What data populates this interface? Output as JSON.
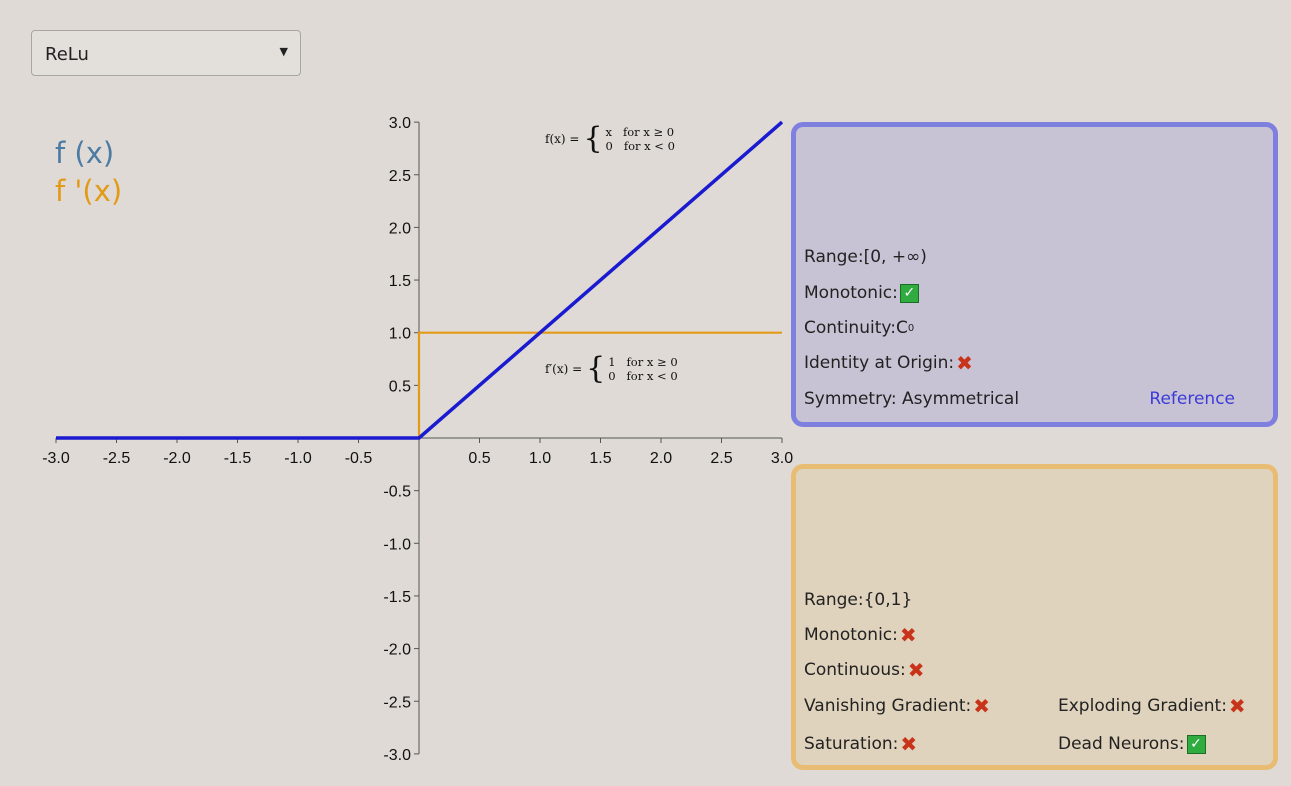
{
  "dropdown": {
    "selected": "ReLu"
  },
  "legend": {
    "f": "f (x)",
    "fprime": "f '(x)"
  },
  "formulas": {
    "f": {
      "lhs": "f(x) =",
      "case1": "x   for x ≥ 0",
      "case2": "0   for x < 0"
    },
    "fprime": {
      "lhs": "f′(x) =",
      "case1": "1   for x ≥ 0",
      "case2": "0   for x < 0"
    }
  },
  "chart_data": {
    "type": "line",
    "xlim": [
      -3,
      3
    ],
    "ylim": [
      -3,
      3
    ],
    "xticks": [
      "-3.0",
      "-2.5",
      "-2.0",
      "-1.5",
      "-1.0",
      "-0.5",
      "0.5",
      "1.0",
      "1.5",
      "2.0",
      "2.5",
      "3.0"
    ],
    "yticks": [
      "3.0",
      "2.5",
      "2.0",
      "1.5",
      "1.0",
      "0.5",
      "-0.5",
      "-1.0",
      "-1.5",
      "-2.0",
      "-2.5",
      "-3.0"
    ],
    "series": [
      {
        "color": "#1a1ad0",
        "x": [
          -3,
          0,
          3
        ],
        "y": [
          0,
          0,
          3
        ]
      },
      {
        "color": "#e29a17",
        "x": [
          -3,
          0,
          0,
          3
        ],
        "y": [
          0,
          0,
          1,
          1
        ]
      }
    ]
  },
  "function_panel": {
    "range_label": "Range:",
    "range_value": "[0, +∞)",
    "monotonic_label": "Monotonic:",
    "monotonic": true,
    "continuity_label": "Continuity:",
    "continuity_base": "C",
    "continuity_sup": "0",
    "identity_label": "Identity at Origin:",
    "identity": false,
    "symmetry_label": "Symmetry: ",
    "symmetry_value": "Asymmetrical",
    "reference": "Reference"
  },
  "derivative_panel": {
    "range_label": "Range:",
    "range_value": "{0,1}",
    "monotonic_label": "Monotonic:",
    "monotonic": false,
    "continuous_label": "Continuous:",
    "continuous": false,
    "vanishing_label": "Vanishing Gradient:",
    "vanishing": false,
    "exploding_label": "Exploding Gradient:",
    "exploding": false,
    "saturation_label": "Saturation:",
    "saturation": false,
    "dead_label": "Dead Neurons:",
    "dead": true
  },
  "colors": {
    "f_legend": "#4c7ba4",
    "fprime_legend": "#e29a17",
    "f_panel_border": "#7f7fe0",
    "fprime_panel_border": "#e8bc72"
  }
}
